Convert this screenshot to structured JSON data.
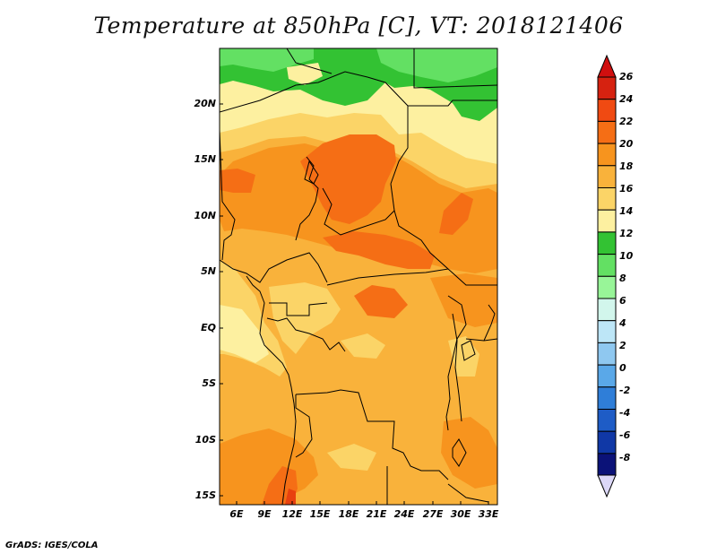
{
  "title": "Temperature at 850hPa [C], VT: 2018121406",
  "footer": "GrADS: IGES/COLA",
  "map": {
    "lat_labels": [
      "20N",
      "15N",
      "10N",
      "5N",
      "EQ",
      "5S",
      "10S",
      "15S"
    ],
    "lon_labels": [
      "6E",
      "9E",
      "12E",
      "15E",
      "18E",
      "21E",
      "24E",
      "27E",
      "30E",
      "33E"
    ],
    "lon_range": [
      3.5,
      33.3
    ],
    "lat_range": [
      -15.8,
      24.9
    ]
  },
  "colorbar": {
    "labels": [
      "26",
      "24",
      "22",
      "20",
      "18",
      "16",
      "14",
      "12",
      "10",
      "8",
      "6",
      "4",
      "2",
      "0",
      "-2",
      "-4",
      "-6",
      "-8"
    ],
    "colors": [
      "#d62210",
      "#f04a12",
      "#f56e15",
      "#f7941e",
      "#f9b23b",
      "#fbd467",
      "#fdf0a0",
      "#33c233",
      "#63e063",
      "#98f598",
      "#d2f6ec",
      "#bde6f7",
      "#8fc8f0",
      "#5aa8e8",
      "#2f7ed8",
      "#1e5cc6",
      "#1038a6",
      "#0b1278"
    ],
    "top_arrow_color": "#d00f0f",
    "bottom_arrow_color": "#dcd8f8"
  },
  "field_colors": {
    "green": "#33c233",
    "light_green": "#63e063",
    "pale_yellow": "#fdf0a0",
    "yellow": "#fbd467",
    "light_orange": "#f9b23b",
    "orange": "#f7941e",
    "dark_orange": "#f56e15",
    "red": "#e8410f"
  }
}
